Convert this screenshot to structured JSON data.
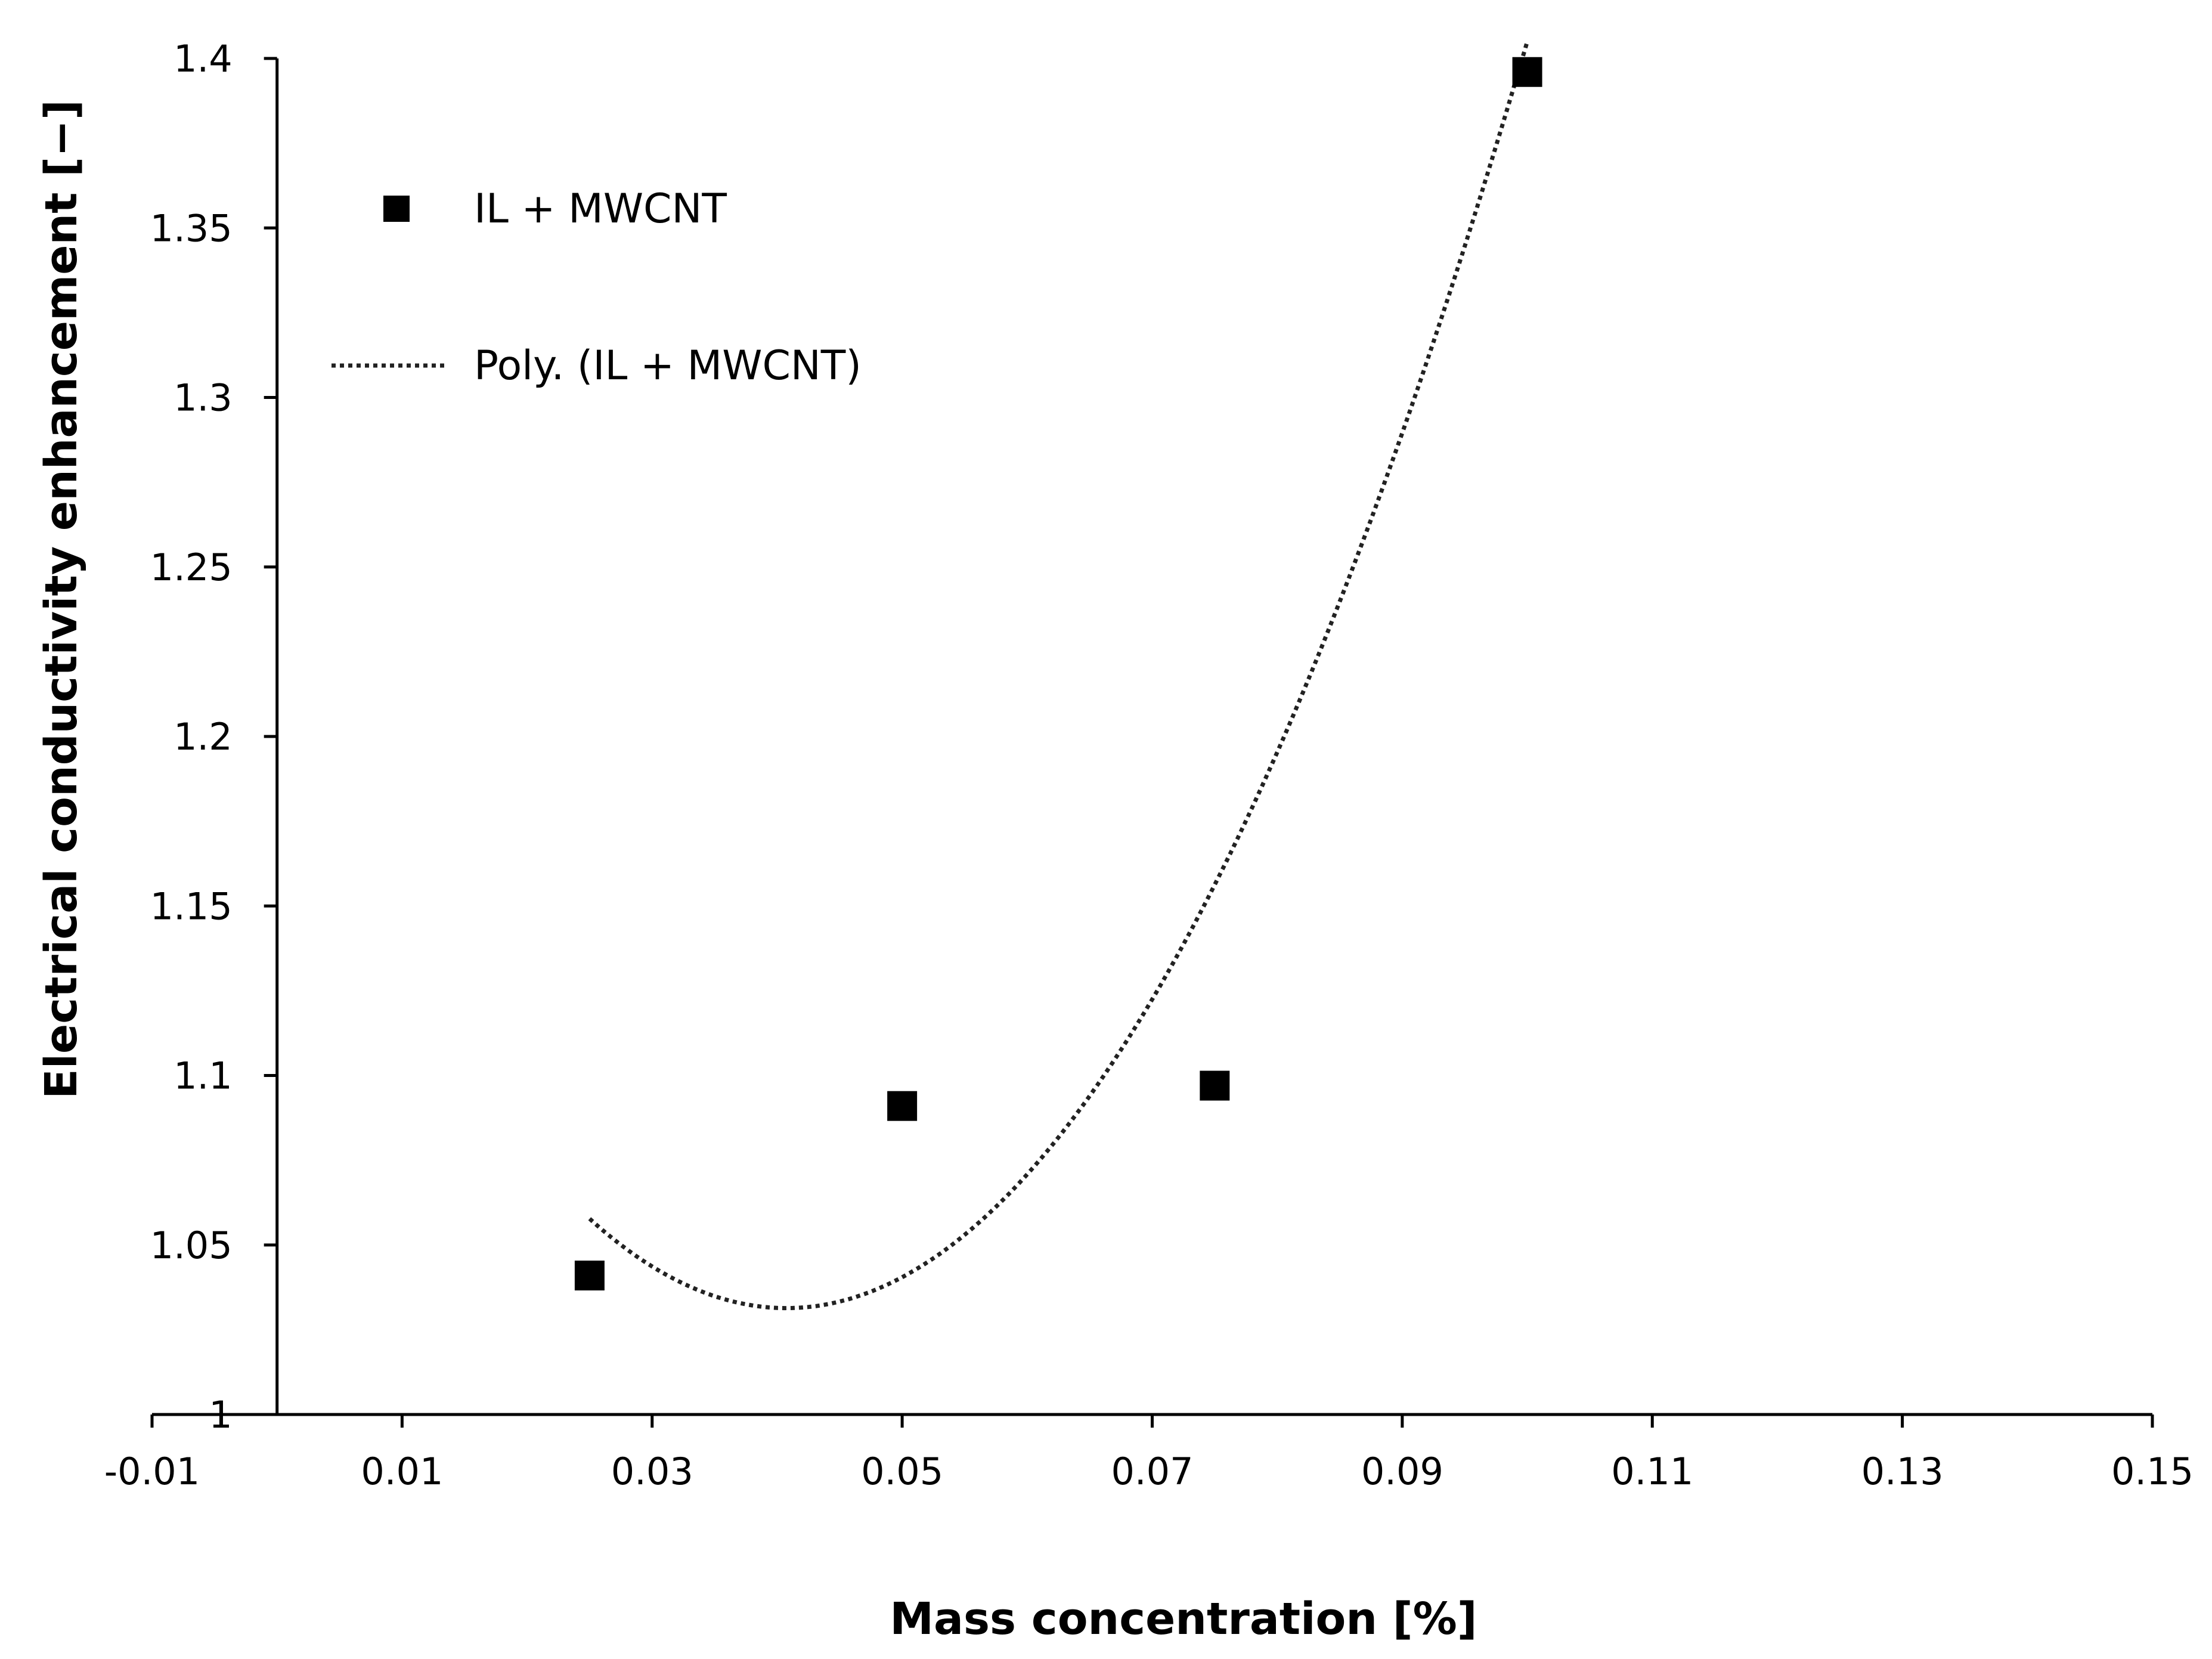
{
  "chart_data": {
    "type": "scatter",
    "title": "",
    "xlabel": "Mass concentration [%]",
    "ylabel": "Electrical conductivity enhancement [−]",
    "xlim": [
      -0.01,
      0.15
    ],
    "ylim": [
      1,
      1.4
    ],
    "x_ticks": [
      -0.01,
      0.01,
      0.03,
      0.05,
      0.07,
      0.09,
      0.11,
      0.13,
      0.15
    ],
    "x_tick_labels": [
      "-0.01",
      "0.01",
      "0.03",
      "0.05",
      "0.07",
      "0.09",
      "0.11",
      "0.13",
      "0.15"
    ],
    "y_ticks": [
      1,
      1.05,
      1.1,
      1.15,
      1.2,
      1.25,
      1.3,
      1.35,
      1.4
    ],
    "y_tick_labels": [
      "1",
      "1.05",
      "1.1",
      "1.15",
      "1.2",
      "1.25",
      "1.3",
      "1.35",
      "1.4"
    ],
    "grid": false,
    "legend_position": "top-left",
    "series": [
      {
        "name": "IL + MWCNT",
        "marker": "square",
        "color": "#000000",
        "x": [
          0.025,
          0.05,
          0.075,
          0.1
        ],
        "y": [
          1.041,
          1.091,
          1.097,
          1.396
        ]
      }
    ],
    "trendline": {
      "name": "Poly. (IL + MWCNT)",
      "style": "dotted",
      "color": "#000000",
      "order": 2,
      "coefficients": [
        1.208,
        -8.67,
        106.4
      ],
      "x_range": [
        0.025,
        0.1
      ]
    }
  }
}
